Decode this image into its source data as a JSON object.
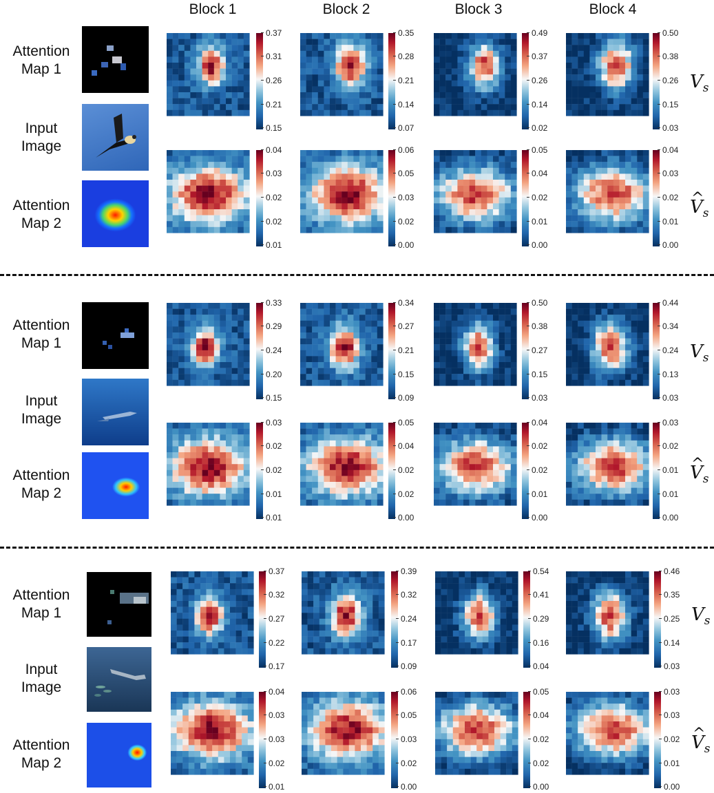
{
  "block_headers": [
    "Block 1",
    "Block 2",
    "Block 3",
    "Block 4"
  ],
  "labels": {
    "attention_map_1": [
      "Attention",
      "Map 1"
    ],
    "input_image": [
      "Input",
      "Image"
    ],
    "attention_map_2": [
      "Attention",
      "Map 2"
    ],
    "vs": "V",
    "vs_sub": "s"
  },
  "colormap": "RdBu_r",
  "groups": [
    {
      "subject": "bird",
      "vs_scales": [
        [
          "0.37",
          "0.31",
          "0.26",
          "0.21",
          "0.15"
        ],
        [
          "0.35",
          "0.28",
          "0.21",
          "0.14",
          "0.07"
        ],
        [
          "0.49",
          "0.37",
          "0.26",
          "0.14",
          "0.02"
        ],
        [
          "0.50",
          "0.38",
          "0.26",
          "0.15",
          "0.03"
        ]
      ],
      "vshat_scales": [
        [
          "0.04",
          "0.03",
          "0.02",
          "0.02",
          "0.01"
        ],
        [
          "0.06",
          "0.05",
          "0.03",
          "0.02",
          "0.00"
        ],
        [
          "0.05",
          "0.04",
          "0.02",
          "0.01",
          "0.00"
        ],
        [
          "0.04",
          "0.03",
          "0.02",
          "0.01",
          "0.00"
        ]
      ]
    },
    {
      "subject": "shark",
      "vs_scales": [
        [
          "0.33",
          "0.29",
          "0.24",
          "0.20",
          "0.15"
        ],
        [
          "0.34",
          "0.27",
          "0.21",
          "0.15",
          "0.09"
        ],
        [
          "0.50",
          "0.38",
          "0.27",
          "0.15",
          "0.03"
        ],
        [
          "0.44",
          "0.34",
          "0.24",
          "0.13",
          "0.03"
        ]
      ],
      "vshat_scales": [
        [
          "0.03",
          "0.02",
          "0.02",
          "0.01",
          "0.01"
        ],
        [
          "0.05",
          "0.04",
          "0.02",
          "0.02",
          "0.00"
        ],
        [
          "0.04",
          "0.02",
          "0.02",
          "0.01",
          "0.00"
        ],
        [
          "0.03",
          "0.02",
          "0.01",
          "0.01",
          "0.00"
        ]
      ]
    },
    {
      "subject": "hammerhead",
      "vs_scales": [
        [
          "0.37",
          "0.32",
          "0.27",
          "0.22",
          "0.17"
        ],
        [
          "0.39",
          "0.32",
          "0.24",
          "0.17",
          "0.09"
        ],
        [
          "0.54",
          "0.41",
          "0.29",
          "0.16",
          "0.04"
        ],
        [
          "0.46",
          "0.35",
          "0.25",
          "0.14",
          "0.03"
        ]
      ],
      "vshat_scales": [
        [
          "0.04",
          "0.03",
          "0.03",
          "0.02",
          "0.01"
        ],
        [
          "0.06",
          "0.05",
          "0.03",
          "0.02",
          "0.00"
        ],
        [
          "0.05",
          "0.04",
          "0.02",
          "0.02",
          "0.00"
        ],
        [
          "0.03",
          "0.03",
          "0.02",
          "0.01",
          "0.00"
        ]
      ]
    }
  ]
}
